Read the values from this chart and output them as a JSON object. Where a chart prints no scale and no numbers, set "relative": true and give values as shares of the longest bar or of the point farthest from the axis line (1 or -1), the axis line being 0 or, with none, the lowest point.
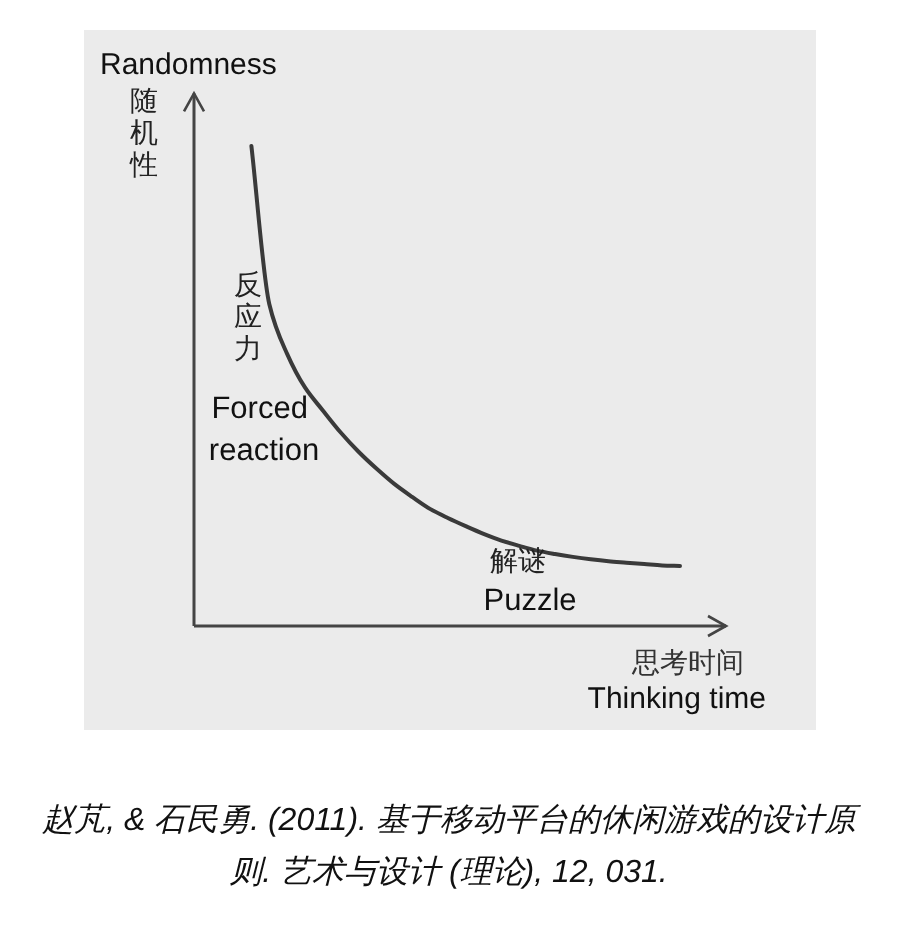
{
  "chart_data": {
    "type": "line",
    "relative": true,
    "ylabel": "Randomness",
    "xlabel": "Thinking time",
    "categories": [
      null,
      null,
      null,
      null,
      null,
      null,
      null,
      null,
      null,
      null,
      null,
      null,
      null,
      null,
      null,
      null,
      null,
      null,
      null,
      null,
      null,
      null,
      null,
      null,
      null
    ],
    "series": [
      {
        "color": "#3a3a3a",
        "values": [
          1,
          0.671,
          0.567,
          0.497,
          0.449,
          0.403,
          0.363,
          0.328,
          0.296,
          0.269,
          0.244,
          0.225,
          0.208,
          0.192,
          0.178,
          0.167,
          0.157,
          0.15,
          0.144,
          0.139,
          0.135,
          0.132,
          0.129,
          0.126,
          0.125
        ]
      }
    ],
    "annotations": [
      "随机性",
      "反应力",
      "Forced reaction",
      "解谜",
      "Puzzle",
      "思考时间",
      "赵芃, & 石民勇. (2011). 基于移动平台的休闲游戏的设计原则. 艺术与设计 (理论), 12, 031."
    ]
  }
}
